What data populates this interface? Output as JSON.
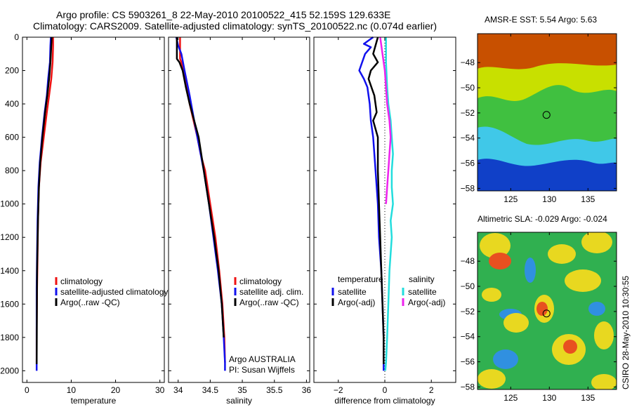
{
  "header": {
    "line1": "Argo profile: CS 5903261_8 22-May-2010 20100522_415 52.159S 129.633E",
    "line2": "Climatology: CARS2009. Satellite-adjusted climatology: synTS_20100522.nc (0.074d earlier)"
  },
  "side_stamp": "CSIRO 28-May-2010 10:30:55",
  "chart_data": [
    {
      "type": "line",
      "xlabel": "temperature",
      "ylabel": "",
      "xlim": [
        -1,
        31
      ],
      "ylim": [
        2070,
        0
      ],
      "xticks": [
        0,
        10,
        20,
        30
      ],
      "yticks": [
        0,
        200,
        400,
        600,
        800,
        1000,
        1200,
        1400,
        1600,
        1800,
        2000
      ],
      "legend": [
        "climatology",
        "satellite-adjusted climatology",
        "Argo(..raw -QC)"
      ],
      "notes": [],
      "series": [
        {
          "name": "climatology",
          "color": "#ee1111",
          "x": [
            5.9,
            5.9,
            5.8,
            5.5,
            5.0,
            4.5,
            3.8,
            3.1,
            2.7,
            2.5,
            2.4,
            2.3,
            2.2,
            2.2
          ],
          "y": [
            0,
            50,
            150,
            250,
            350,
            450,
            600,
            750,
            900,
            1100,
            1300,
            1500,
            1750,
            1950
          ]
        },
        {
          "name": "satellite-adjusted climatology",
          "color": "#1111ee",
          "x": [
            5.4,
            5.3,
            5.2,
            4.8,
            4.5,
            4.0,
            3.4,
            2.9,
            2.6,
            2.4,
            2.3,
            2.2,
            2.2,
            2.2
          ],
          "y": [
            0,
            50,
            150,
            250,
            350,
            450,
            600,
            750,
            900,
            1100,
            1300,
            1500,
            1750,
            2000
          ]
        },
        {
          "name": "Argo(..raw -QC)",
          "color": "#000000",
          "x": [
            5.6,
            5.5,
            5.3,
            5.0,
            4.6,
            4.1,
            3.5,
            3.0,
            2.7,
            2.5,
            2.3,
            2.25,
            2.2
          ],
          "y": [
            0,
            50,
            150,
            250,
            350,
            450,
            600,
            750,
            900,
            1100,
            1400,
            1700,
            1960
          ]
        }
      ]
    },
    {
      "type": "line",
      "xlabel": "salinity",
      "ylabel": "",
      "xlim": [
        33.85,
        36.05
      ],
      "ylim": [
        2070,
        0
      ],
      "xticks": [
        34,
        34.5,
        35,
        35.5,
        36
      ],
      "yticks": [
        0,
        200,
        400,
        600,
        800,
        1000,
        1200,
        1400,
        1600,
        1800,
        2000
      ],
      "legend": [
        "climatology",
        "satellite adj. clim.",
        "Argo(..raw -QC)"
      ],
      "notes": [
        "Argo AUSTRALIA",
        "PI: Susan Wijffels"
      ],
      "series": [
        {
          "name": "climatology",
          "color": "#ee1111",
          "x": [
            34.03,
            34.03,
            34.05,
            34.13,
            34.18,
            34.24,
            34.3,
            34.35,
            34.42,
            34.5,
            34.58,
            34.64,
            34.69,
            34.72,
            34.73
          ],
          "y": [
            0,
            130,
            150,
            300,
            400,
            500,
            600,
            700,
            800,
            1000,
            1200,
            1400,
            1600,
            1800,
            1950
          ]
        },
        {
          "name": "satellite adj. clim.",
          "color": "#1111ee",
          "x": [
            33.97,
            34.0,
            34.05,
            34.1,
            34.18,
            34.25,
            34.3,
            34.35,
            34.4,
            34.48,
            34.55,
            34.62,
            34.68,
            34.71,
            34.73,
            34.73
          ],
          "y": [
            0,
            50,
            100,
            200,
            350,
            500,
            600,
            700,
            800,
            1000,
            1200,
            1400,
            1600,
            1800,
            1950,
            2000
          ]
        },
        {
          "name": "Argo(..raw -QC)",
          "color": "#000000",
          "x": [
            33.98,
            33.98,
            34.02,
            34.07,
            34.12,
            34.18,
            34.25,
            34.32,
            34.4,
            34.48,
            34.56,
            34.63,
            34.68,
            34.71
          ],
          "y": [
            0,
            130,
            150,
            200,
            300,
            400,
            500,
            600,
            800,
            1000,
            1200,
            1400,
            1600,
            1800
          ]
        }
      ]
    },
    {
      "type": "line",
      "xlabel": "difference from climatology",
      "ylabel": "",
      "xlim": [
        -3.05,
        3.05
      ],
      "ylim": [
        2070,
        0
      ],
      "xticks": [
        -2,
        0,
        2
      ],
      "yticks": [
        0,
        200,
        400,
        600,
        800,
        1000,
        1200,
        1400,
        1600,
        1800,
        2000
      ],
      "legend_headers": [
        "temperature",
        "salinity"
      ],
      "legend": [
        "satellite",
        "Argo(-adj)",
        "satellite",
        "Argo(-adj)"
      ],
      "notes": [],
      "series": [
        {
          "name": "satellite",
          "color": "#1111ee",
          "x": [
            -0.5,
            -0.9,
            -0.6,
            -0.85,
            -1.1,
            -0.9,
            -0.75,
            -0.65,
            -0.6,
            -0.5,
            -0.4,
            -0.3,
            -0.25,
            -0.15,
            -0.1,
            -0.05,
            -0.05
          ],
          "y": [
            0,
            40,
            60,
            100,
            200,
            250,
            300,
            400,
            500,
            600,
            800,
            1000,
            1200,
            1400,
            1600,
            1800,
            2000
          ]
        },
        {
          "name": "Argo(-adj)",
          "color": "#000000",
          "x": [
            -0.3,
            -0.5,
            -0.3,
            -0.6,
            -0.7,
            -0.45,
            -0.35,
            -0.5,
            -0.3,
            -0.3,
            -0.25,
            -0.2,
            -0.15,
            -0.1,
            -0.05,
            -0.05
          ],
          "y": [
            0,
            100,
            150,
            200,
            250,
            350,
            450,
            500,
            600,
            800,
            1000,
            1200,
            1400,
            1600,
            1800,
            1960
          ]
        },
        {
          "name": "satellite",
          "color": "#22dddd",
          "x": [
            0.05,
            0.05,
            0.1,
            0.15,
            0.25,
            0.3,
            0.35,
            0.3,
            0.3,
            0.35,
            0.25,
            0.3,
            0.2,
            0.15,
            0.1,
            0.05,
            0.02
          ],
          "y": [
            0,
            150,
            300,
            400,
            500,
            600,
            700,
            800,
            900,
            1000,
            1100,
            1200,
            1400,
            1600,
            1800,
            1950,
            2000
          ]
        },
        {
          "name": "Argo(-adj)",
          "color": "#ee22ee",
          "x": [
            -0.2,
            -0.1,
            0.0,
            0.05,
            0.1,
            0.2,
            0.25,
            0.2,
            0.15,
            0.1,
            0.05
          ],
          "y": [
            0,
            100,
            200,
            300,
            400,
            500,
            600,
            700,
            800,
            900,
            1000
          ]
        }
      ]
    },
    {
      "type": "heatmap",
      "title": "AMSR-E SST: 5.54 Argo: 5.63",
      "xlim": [
        120.7,
        138.7
      ],
      "ylim": [
        -58.2,
        -45.7
      ],
      "xticks": [
        125,
        130,
        135
      ],
      "yticks": [
        -48,
        -50,
        -52,
        -54,
        -56,
        -58
      ],
      "marker": {
        "lon": 129.633,
        "lat": -52.159
      },
      "colors": {
        "warm": "#c85000",
        "mid": "#c8e000",
        "green": "#40c040",
        "cyan": "#40c8e8",
        "cold": "#1040c8"
      }
    },
    {
      "type": "heatmap",
      "title": "Altimetric SLA: -0.029 Argo: -0.024",
      "xlim": [
        120.7,
        138.7
      ],
      "ylim": [
        -58.2,
        -45.7
      ],
      "xticks": [
        125,
        130,
        135
      ],
      "yticks": [
        -48,
        -50,
        -52,
        -54,
        -56,
        -58
      ],
      "marker": {
        "lon": 129.633,
        "lat": -52.159
      },
      "colors": {
        "base": "#30b050",
        "high": "#e8d820",
        "peak": "#e85020",
        "low": "#3090e0"
      }
    }
  ]
}
